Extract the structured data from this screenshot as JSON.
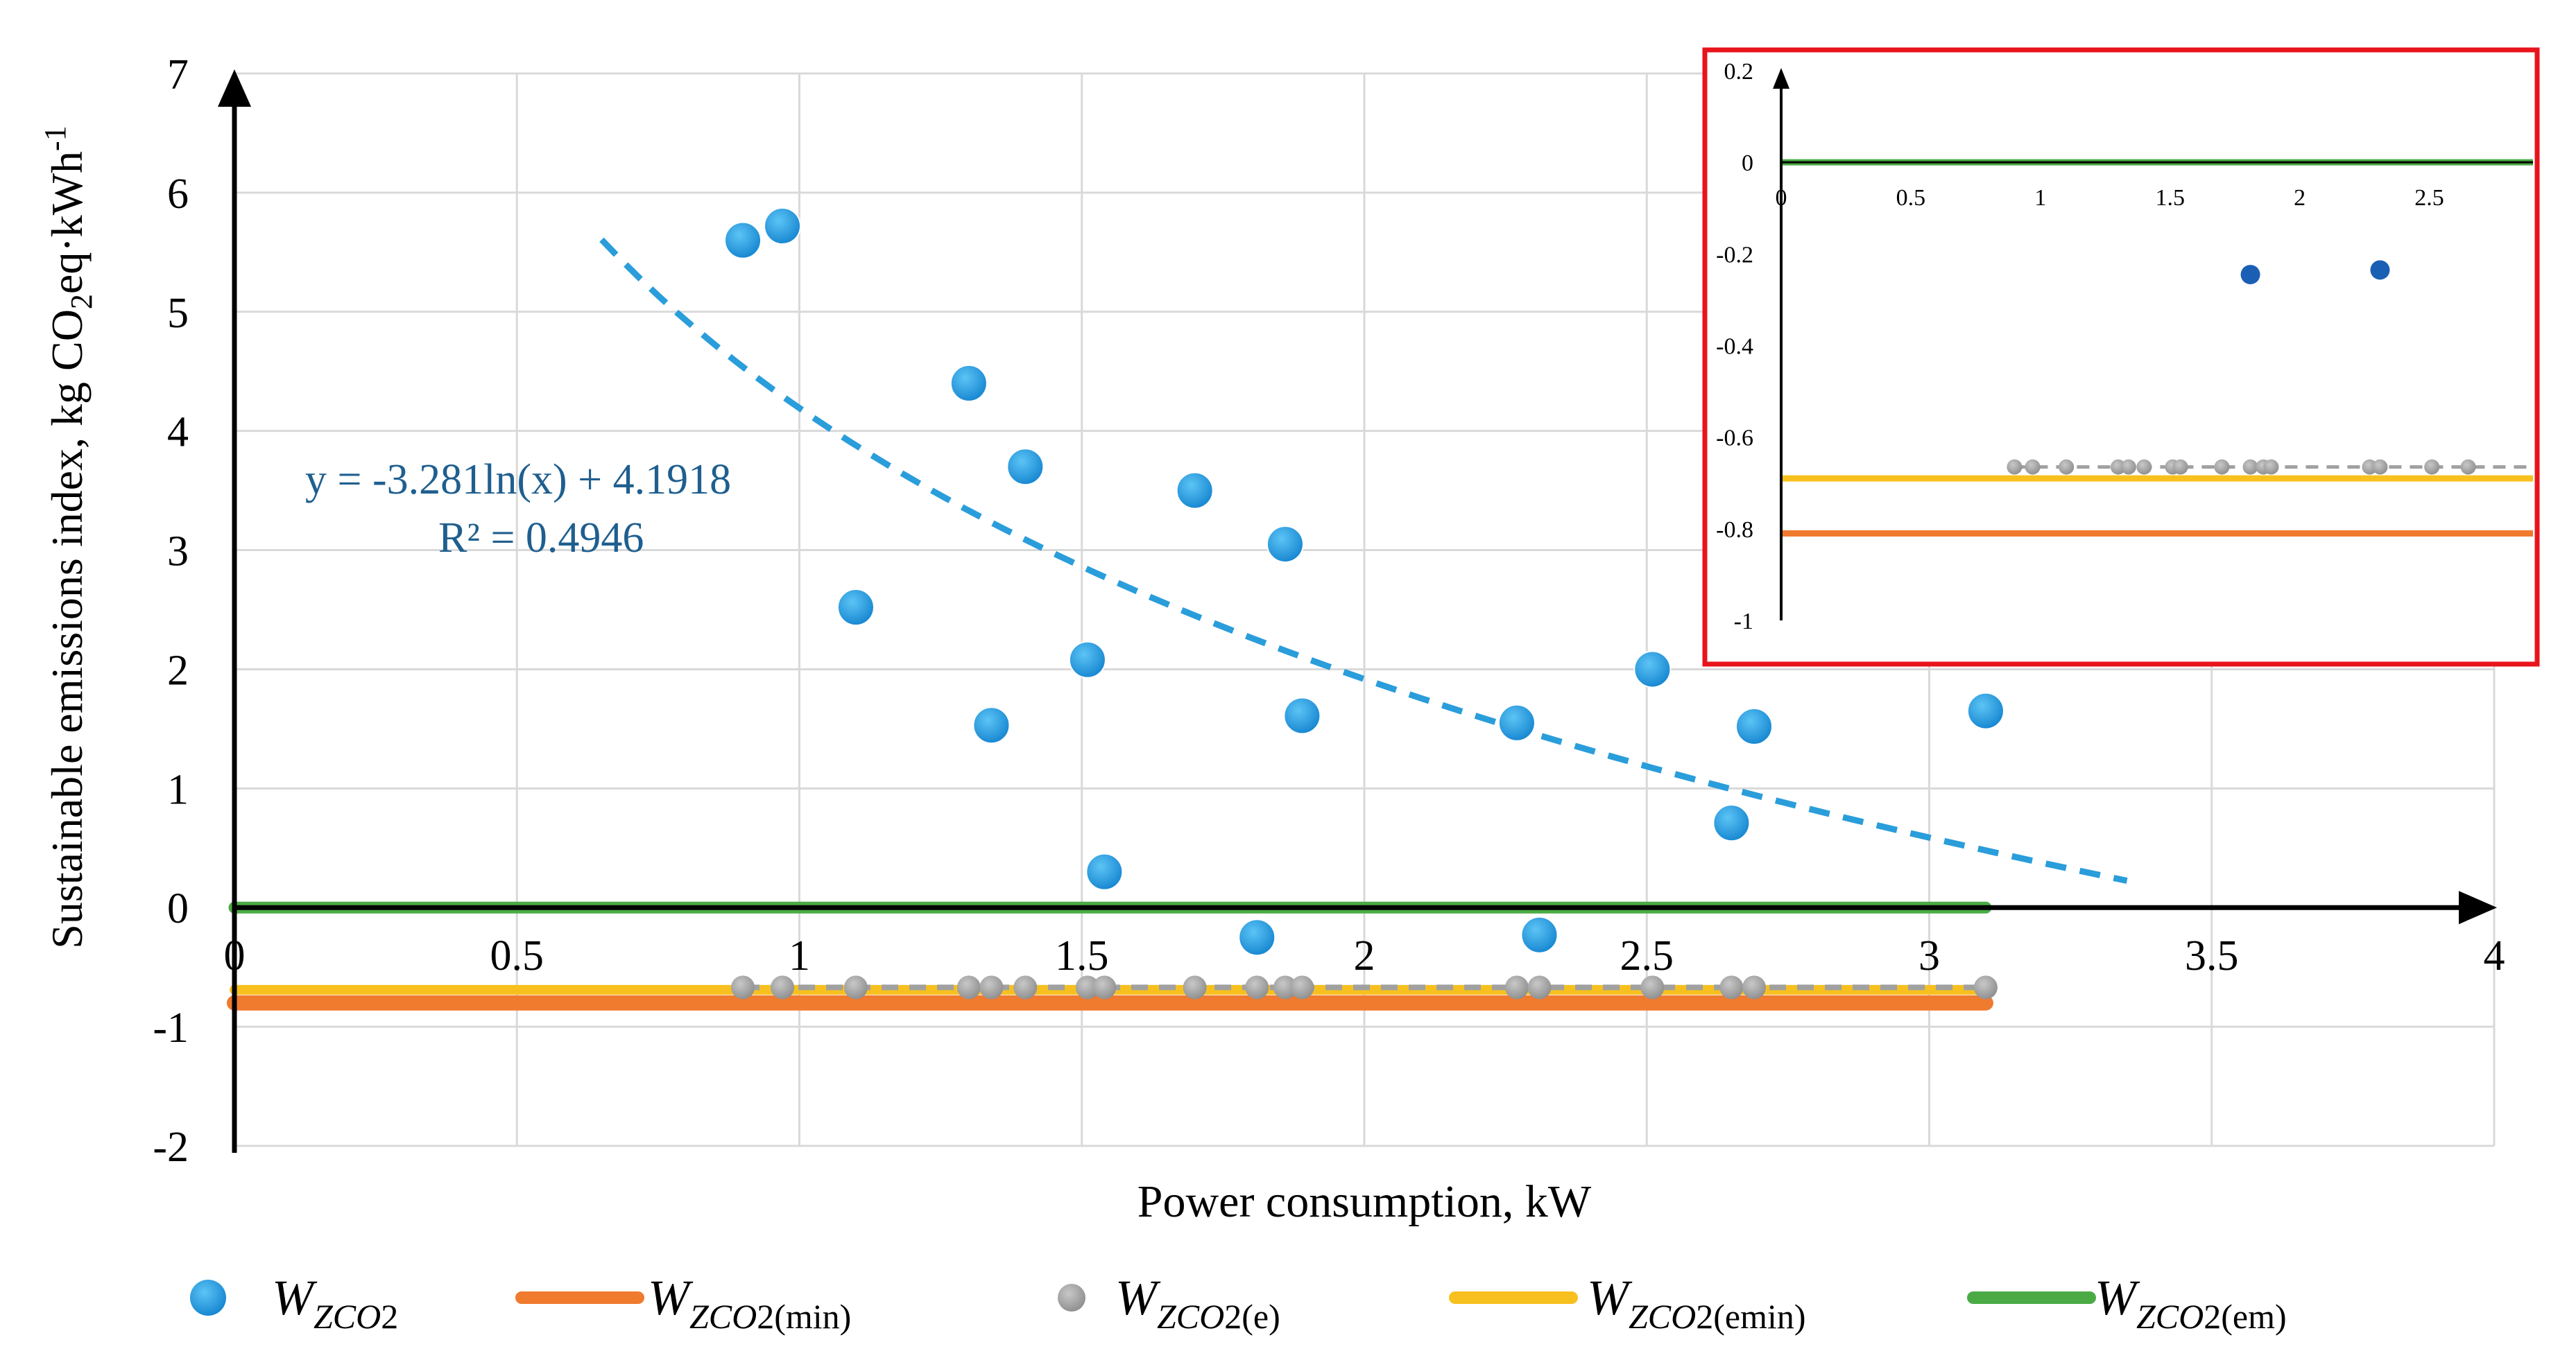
{
  "colors": {
    "points": "#1f9be0",
    "points_dark": "#1466a8",
    "trend": "#2a9ddb",
    "min_line": "#f07a2e",
    "e_points": "#9a9a9a",
    "e_line": "#a0a0a0",
    "emin_line": "#f7c01e",
    "em_line": "#4aab45",
    "grid": "#d9d9d9",
    "axis": "#000000",
    "equation": "#1f5f8f",
    "inset_border": "#e8141c",
    "inset_points": "#1a5fb4"
  },
  "chart_data": [
    {
      "id": "main",
      "type": "scatter",
      "xlabel": "Power consumption, kW",
      "ylabel": {
        "base": "Sustainable emissions index, kg CO",
        "sub": "2",
        "mid": "eq·kWh",
        "sup": "-1"
      },
      "xlim": [
        0,
        4
      ],
      "ylim": [
        -2,
        7
      ],
      "x_ticks": [
        0,
        0.5,
        1,
        1.5,
        2,
        2.5,
        3,
        3.5,
        4
      ],
      "x_tick_labels": [
        "0",
        "0.5",
        "1",
        "1.5",
        "2",
        "2.5",
        "3",
        "3.5",
        "4"
      ],
      "y_ticks": [
        -2,
        -1,
        0,
        1,
        2,
        3,
        4,
        5,
        6,
        7
      ],
      "y_tick_labels": [
        "-2",
        "-1",
        "0",
        "1",
        "2",
        "3",
        "4",
        "5",
        "6",
        "7"
      ],
      "grid": true,
      "series": [
        {
          "name": "W_ZCO2",
          "kind": "points",
          "x": [
            0.9,
            0.97,
            1.1,
            1.3,
            1.34,
            1.4,
            1.51,
            1.54,
            1.7,
            1.81,
            1.86,
            1.89,
            2.27,
            2.31,
            2.51,
            2.65,
            2.69,
            3.1
          ],
          "y": [
            5.6,
            5.72,
            2.52,
            4.4,
            1.53,
            3.7,
            2.08,
            0.3,
            3.5,
            -0.25,
            3.05,
            1.61,
            1.55,
            -0.23,
            2.0,
            0.71,
            1.52,
            1.65
          ]
        },
        {
          "name": "W_ZCO2(e)",
          "kind": "points",
          "x": [
            0.9,
            0.97,
            1.1,
            1.3,
            1.34,
            1.4,
            1.51,
            1.54,
            1.7,
            1.81,
            1.86,
            1.89,
            2.27,
            2.31,
            2.51,
            2.65,
            2.69,
            3.1
          ],
          "y": [
            -0.67,
            -0.67,
            -0.67,
            -0.67,
            -0.67,
            -0.67,
            -0.67,
            -0.67,
            -0.67,
            -0.67,
            -0.67,
            -0.67,
            -0.67,
            -0.67,
            -0.67,
            -0.67,
            -0.67,
            -0.67
          ]
        },
        {
          "name": "W_ZCO2(e) level",
          "kind": "dashed-line",
          "x": [
            0.9,
            3.1
          ],
          "y": [
            -0.67,
            -0.67
          ]
        },
        {
          "name": "W_ZCO2(min)",
          "kind": "line",
          "x": [
            0,
            3.1
          ],
          "y": [
            -0.8,
            -0.8
          ]
        },
        {
          "name": "W_ZCO2(emin)",
          "kind": "line",
          "x": [
            0,
            3.1
          ],
          "y": [
            -0.69,
            -0.69
          ]
        },
        {
          "name": "W_ZCO2(em)",
          "kind": "line",
          "x": [
            0,
            3.1
          ],
          "y": [
            0,
            0
          ]
        }
      ],
      "trendline": {
        "type": "log",
        "a": -3.281,
        "b": 4.1918,
        "x_range": [
          0.65,
          3.35
        ],
        "equation": "y = -3.281ln(x) + 4.1918",
        "r2": "R² = 0.4946"
      }
    },
    {
      "id": "inset",
      "type": "scatter",
      "xlim": [
        0,
        2.9
      ],
      "ylim": [
        -1,
        0.2
      ],
      "x_ticks": [
        0,
        0.5,
        1,
        1.5,
        2,
        2.5
      ],
      "x_tick_labels": [
        "0",
        "0.5",
        "1",
        "1.5",
        "2",
        "2.5"
      ],
      "y_ticks": [
        -1,
        -0.8,
        -0.6,
        -0.4,
        -0.2,
        0,
        0.2
      ],
      "y_tick_labels": [
        "-1",
        "-0.8",
        "-0.6",
        "-0.4",
        "-0.2",
        "0",
        "0.2"
      ],
      "series": [
        {
          "name": "W_ZCO2",
          "kind": "points",
          "x": [
            1.81,
            2.31
          ],
          "y": [
            -0.245,
            -0.235
          ]
        },
        {
          "name": "W_ZCO2(e)",
          "kind": "points",
          "x": [
            0.9,
            0.97,
            1.1,
            1.3,
            1.34,
            1.4,
            1.51,
            1.54,
            1.7,
            1.81,
            1.86,
            1.89,
            2.27,
            2.31,
            2.51,
            2.65
          ],
          "y": [
            -0.665,
            -0.665,
            -0.665,
            -0.665,
            -0.665,
            -0.665,
            -0.665,
            -0.665,
            -0.665,
            -0.665,
            -0.665,
            -0.665,
            -0.665,
            -0.665,
            -0.665,
            -0.665
          ]
        },
        {
          "name": "W_ZCO2(e) level",
          "kind": "dashed-line",
          "x": [
            0.9,
            2.9
          ],
          "y": [
            -0.665,
            -0.665
          ]
        },
        {
          "name": "W_ZCO2(emin)",
          "kind": "line",
          "x": [
            0,
            2.9
          ],
          "y": [
            -0.69,
            -0.69
          ]
        },
        {
          "name": "W_ZCO2(min)",
          "kind": "line",
          "x": [
            0,
            2.9
          ],
          "y": [
            -0.81,
            -0.81
          ]
        },
        {
          "name": "W_ZCO2(em)",
          "kind": "line",
          "x": [
            0,
            2.9
          ],
          "y": [
            0,
            0
          ]
        }
      ]
    }
  ],
  "legend": [
    {
      "id": "pts",
      "marker": "dot",
      "color_key": "points",
      "base": "W",
      "sub1": "ZCO",
      "sub2": "2",
      "tail": ""
    },
    {
      "id": "min",
      "marker": "line",
      "color_key": "min_line",
      "base": "W",
      "sub1": "ZCO",
      "sub2": "2",
      "tail": "(min)"
    },
    {
      "id": "e",
      "marker": "dot",
      "color_key": "e_points",
      "base": "W",
      "sub1": "ZCO",
      "sub2": "2",
      "tail": "(e)"
    },
    {
      "id": "emin",
      "marker": "line",
      "color_key": "emin_line",
      "base": "W",
      "sub1": "ZCO",
      "sub2": "2",
      "tail": "(emin)"
    },
    {
      "id": "em",
      "marker": "line",
      "color_key": "em_line",
      "base": "W",
      "sub1": "ZCO",
      "sub2": "2",
      "tail": "(em)"
    }
  ]
}
